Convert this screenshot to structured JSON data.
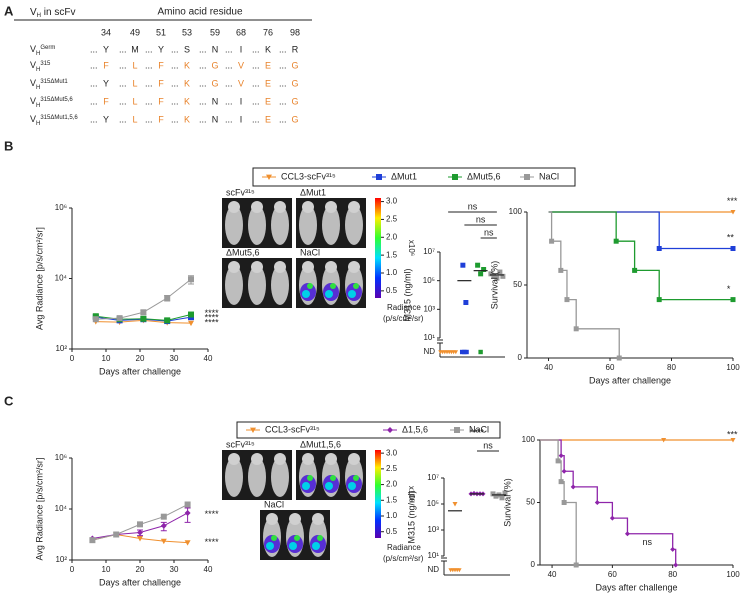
{
  "panel_labels": [
    "A",
    "B",
    "C"
  ],
  "table": {
    "header": [
      {
        "t": "V"
      },
      {
        "t": "H",
        "pos": "sub"
      },
      {
        "t": " in scFv"
      }
    ],
    "group_title": "Amino acid residue",
    "columns": [
      "34",
      "49",
      "51",
      "53",
      "59",
      "68",
      "76",
      "98"
    ],
    "ellipsis": "...",
    "highlight_color": "#e8822a",
    "rows": [
      {
        "name": [
          {
            "t": "V"
          },
          {
            "t": "H",
            "pos": "sub"
          },
          {
            "t": "Germ",
            "pos": "sup"
          }
        ],
        "residues": [
          "Y",
          "M",
          "Y",
          "S",
          "N",
          "I",
          "K",
          "R"
        ],
        "mutated": [
          false,
          false,
          false,
          false,
          false,
          false,
          false,
          false
        ]
      },
      {
        "name": [
          {
            "t": "V"
          },
          {
            "t": "H",
            "pos": "sub"
          },
          {
            "t": "315",
            "pos": "sup"
          }
        ],
        "residues": [
          "F",
          "L",
          "F",
          "K",
          "G",
          "V",
          "E",
          "G"
        ],
        "mutated": [
          true,
          true,
          true,
          true,
          true,
          true,
          true,
          true
        ]
      },
      {
        "name": [
          {
            "t": "V"
          },
          {
            "t": "H",
            "pos": "sub"
          },
          {
            "t": "315ΔMut1",
            "pos": "sup"
          }
        ],
        "residues": [
          "Y",
          "L",
          "F",
          "K",
          "G",
          "V",
          "E",
          "G"
        ],
        "mutated": [
          false,
          true,
          true,
          true,
          true,
          true,
          true,
          true
        ]
      },
      {
        "name": [
          {
            "t": "V"
          },
          {
            "t": "H",
            "pos": "sub"
          },
          {
            "t": "315ΔMut5,6",
            "pos": "sup"
          }
        ],
        "residues": [
          "F",
          "L",
          "F",
          "K",
          "N",
          "I",
          "E",
          "G"
        ],
        "mutated": [
          true,
          true,
          true,
          true,
          false,
          false,
          true,
          true
        ]
      },
      {
        "name": [
          {
            "t": "V"
          },
          {
            "t": "H",
            "pos": "sub"
          },
          {
            "t": "315ΔMut1,5,6",
            "pos": "sup"
          }
        ],
        "residues": [
          "Y",
          "L",
          "F",
          "K",
          "N",
          "I",
          "E",
          "G"
        ],
        "mutated": [
          false,
          true,
          true,
          true,
          false,
          false,
          true,
          true
        ]
      }
    ]
  },
  "imaging": [
    {
      "labels": [
        "scFv³¹⁵",
        "ΔMut1",
        "ΔMut5,6",
        "NaCl"
      ],
      "signal": [
        false,
        false,
        false,
        true
      ]
    },
    {
      "labels": [
        "scFv³¹⁵",
        "ΔMut1,5,6",
        "NaCl"
      ],
      "signal": [
        false,
        true,
        true
      ]
    }
  ],
  "colorbar": {
    "clim": [
      0.3,
      3.1
    ],
    "ticks": [
      {
        "value": 3,
        "label": "3.0"
      },
      2.5,
      {
        "value": 2,
        "label": "2.0"
      },
      1.5,
      {
        "value": 1,
        "label": "1.0"
      },
      0.5
    ],
    "exponent": "x10⁶",
    "title": "Radiance",
    "units": "(p/s/cm²/sr)"
  },
  "chart_data": [
    {
      "type": "line",
      "ylabel": "Avg Radiance [p/s/cm²/sr]",
      "xlabel": "Days after challenge",
      "log_y": true,
      "legend": true,
      "x": [
        7,
        14,
        21,
        28,
        35
      ],
      "xlim": [
        0,
        40
      ],
      "xticks": [
        0,
        10,
        20,
        30,
        40
      ],
      "ylim": [
        100,
        1000000
      ],
      "yticks": [
        {
          "value": 100,
          "label": "10²"
        },
        {
          "value": 10000,
          "label": "10⁴"
        },
        {
          "value": 1000000,
          "label": "10⁶"
        }
      ],
      "series": [
        {
          "name": "CCL3-scFv³¹⁵",
          "color": "#f0902f",
          "marker": "triangle-down",
          "values": [
            600,
            580,
            650,
            560,
            540
          ]
        },
        {
          "name": "ΔMut1",
          "color": "#1f3fd8",
          "marker": "square",
          "values": [
            800,
            650,
            700,
            620,
            800
          ]
        },
        {
          "name": "ΔMut5,6",
          "color": "#1e9b2f",
          "marker": "square",
          "values": [
            850,
            700,
            720,
            650,
            950
          ]
        },
        {
          "name": "NaCl",
          "color": "#999999",
          "marker": "square",
          "values": [
            700,
            750,
            1100,
            2800,
            9500
          ],
          "errors": [
            0,
            0,
            150,
            500,
            2500
          ]
        }
      ],
      "annotations": [
        {
          "text": "****",
          "x": 39,
          "y": 1000
        },
        {
          "text": "****",
          "x": 39,
          "y": 740
        },
        {
          "text": "****",
          "x": 39,
          "y": 540
        }
      ]
    },
    {
      "type": "dot",
      "ylabel": "M315 (ng/ml)",
      "log_y": true,
      "nd_label": "ND",
      "ylim": [
        10,
        10000000
      ],
      "yticks": [
        {
          "value": 10,
          "label": "10¹"
        },
        {
          "value": 1000,
          "label": "10³"
        },
        {
          "value": 100000,
          "label": "10⁵"
        },
        {
          "value": 10000000,
          "label": "10⁷"
        }
      ],
      "series": [
        {
          "name": "CCL3-scFv³¹⁵",
          "color": "#f0902f",
          "marker": "triangle-down",
          "values": [],
          "nd": 8,
          "mean": null
        },
        {
          "name": "ΔMut1",
          "color": "#1f3fd8",
          "marker": "square",
          "values": [
            1200000,
            3000
          ],
          "nd": 3,
          "mean": 100000
        },
        {
          "name": "ΔMut5,6",
          "color": "#1e9b2f",
          "marker": "square",
          "values": [
            1200000,
            300000,
            600000
          ],
          "nd": 1,
          "mean": 500000
        },
        {
          "name": "NaCl",
          "color": "#999999",
          "marker": "square",
          "values": [
            300000,
            200000,
            150000,
            400000,
            200000
          ],
          "nd": 0,
          "mean": 250000
        }
      ],
      "comparisons": [
        {
          "groups": [
            0,
            3
          ],
          "label": "ns"
        },
        {
          "groups": [
            1,
            3
          ],
          "label": "ns"
        },
        {
          "groups": [
            2,
            3
          ],
          "label": "ns"
        }
      ]
    },
    {
      "type": "survival",
      "ylabel": "Survival (%)",
      "xlabel": "Days after challenge",
      "xlim": [
        33,
        100
      ],
      "xticks": [
        40,
        60,
        80,
        100
      ],
      "ylim": [
        0,
        100
      ],
      "yticks": [
        0,
        50,
        100
      ],
      "series": [
        {
          "name": "CCL3-scFv³¹⁵",
          "color": "#f0902f",
          "marker": "triangle-down",
          "x": [
            40,
            100
          ],
          "values": [
            100,
            100
          ]
        },
        {
          "name": "ΔMut1",
          "color": "#1f3fd8",
          "marker": "square",
          "x": [
            40,
            76,
            100
          ],
          "values": [
            100,
            75,
            75
          ]
        },
        {
          "name": "ΔMut5,6",
          "color": "#1e9b2f",
          "marker": "square",
          "x": [
            40,
            62,
            68,
            76,
            100
          ],
          "values": [
            100,
            80,
            60,
            40,
            40
          ]
        },
        {
          "name": "NaCl",
          "color": "#999999",
          "marker": "square",
          "x": [
            40,
            41,
            44,
            46,
            49,
            63
          ],
          "values": [
            100,
            80,
            60,
            40,
            20,
            0
          ]
        }
      ],
      "annotations": [
        {
          "text": "***",
          "x": 98,
          "y": 107
        },
        {
          "text": "**",
          "x": 98,
          "y": 82
        },
        {
          "text": "*",
          "x": 98,
          "y": 47
        }
      ]
    },
    {
      "type": "line",
      "ylabel": "Avg Radiance [p/s/cm²/sr]",
      "xlabel": "Days after challenge",
      "log_y": true,
      "legend": true,
      "x": [
        6,
        13,
        20,
        27,
        34
      ],
      "xlim": [
        0,
        40
      ],
      "xticks": [
        0,
        10,
        20,
        30,
        40
      ],
      "ylim": [
        100,
        1000000
      ],
      "yticks": [
        {
          "value": 100,
          "label": "10²"
        },
        {
          "value": 10000,
          "label": "10⁴"
        },
        {
          "value": 1000000,
          "label": "10⁶"
        }
      ],
      "series": [
        {
          "name": "CCL3-scFv³¹⁵",
          "color": "#f0902f",
          "marker": "triangle-down",
          "values": [
            600,
            1000,
            700,
            550,
            480
          ]
        },
        {
          "name": "Δ1,5,6",
          "color": "#8e24aa",
          "marker": "diamond",
          "values": [
            700,
            1000,
            1200,
            2200,
            7000
          ],
          "errors": [
            0,
            0,
            300,
            800,
            4000
          ]
        },
        {
          "name": "NaCl",
          "color": "#999999",
          "marker": "square",
          "values": [
            600,
            1000,
            2500,
            5000,
            15000
          ]
        }
      ],
      "annotations": [
        {
          "text": "****",
          "x": 39,
          "y": 6000
        },
        {
          "text": "****",
          "x": 39,
          "y": 480
        }
      ]
    },
    {
      "type": "dot",
      "ylabel": "M315 (ng/ml)",
      "log_y": true,
      "nd_label": "ND",
      "ylim": [
        10,
        10000000
      ],
      "yticks": [
        {
          "value": 10,
          "label": "10¹"
        },
        {
          "value": 1000,
          "label": "10³"
        },
        {
          "value": 100000,
          "label": "10⁵"
        },
        {
          "value": 10000000,
          "label": "10⁷"
        }
      ],
      "series": [
        {
          "name": "CCL3-scFv³¹⁵",
          "color": "#f0902f",
          "marker": "triangle-down",
          "values": [
            100000
          ],
          "nd": 5,
          "mean": 30000
        },
        {
          "name": "Δ1,5,6",
          "color": "#8e24aa",
          "marker": "diamond",
          "values": [
            600000,
            650000,
            600000,
            620000,
            600000
          ],
          "nd": 0,
          "mean": 600000
        },
        {
          "name": "NaCl",
          "color": "#999999",
          "marker": "square",
          "values": [
            600000,
            400000,
            500000,
            300000,
            700000
          ],
          "nd": 0,
          "mean": 500000
        }
      ],
      "comparisons": [
        {
          "groups": [
            0,
            2
          ],
          "label": "****"
        },
        {
          "groups": [
            1,
            2
          ],
          "label": "ns"
        }
      ]
    },
    {
      "type": "survival",
      "ylabel": "Survival (%)",
      "xlabel": "Days after challenge",
      "xlim": [
        36,
        100
      ],
      "xticks": [
        40,
        60,
        80,
        100
      ],
      "ylim": [
        0,
        100
      ],
      "yticks": [
        0,
        50,
        100
      ],
      "series": [
        {
          "name": "CCL3-scFv³¹⁵",
          "color": "#f0902f",
          "marker": "triangle-down",
          "x": [
            36,
            77,
            100
          ],
          "values": [
            100,
            100,
            100
          ]
        },
        {
          "name": "Δ1,5,6",
          "color": "#8e24aa",
          "marker": "diamond",
          "x": [
            36,
            43,
            44,
            47,
            55,
            60,
            65,
            80,
            81
          ],
          "values": [
            100,
            87.5,
            75,
            62.5,
            50,
            37.5,
            25,
            12.5,
            0
          ]
        },
        {
          "name": "NaCl",
          "color": "#999999",
          "marker": "square",
          "x": [
            36,
            42,
            43,
            44,
            48
          ],
          "values": [
            100,
            83.3,
            66.7,
            50,
            0
          ]
        }
      ],
      "annotations": [
        {
          "text": "***",
          "x": 98,
          "y": 104
        },
        {
          "text": "ns",
          "x": 70,
          "y": 18
        }
      ]
    }
  ]
}
